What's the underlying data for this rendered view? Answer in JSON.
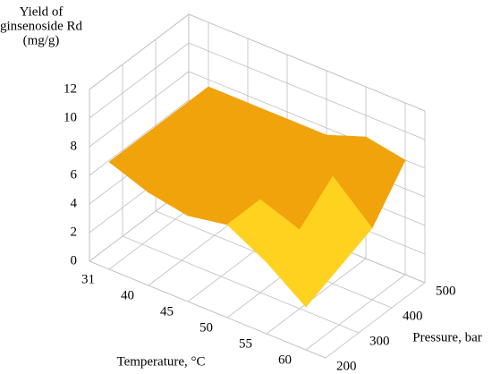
{
  "chart_data": {
    "type": "surface",
    "z_label": [
      "Yield of",
      "ginsenoside Rd",
      "(mg/g)"
    ],
    "x_label": "Temperature, °C",
    "y_label": "Pressure, bar",
    "categories": [
      "31",
      "40",
      "45",
      "50",
      "55",
      "60"
    ],
    "series": [
      {
        "name": "200",
        "values": [
          7.5,
          6.5,
          6,
          6.5,
          5,
          3
        ]
      },
      {
        "name": "300",
        "values": [
          7.5,
          7,
          6.5,
          6.5,
          5.5,
          4
        ]
      },
      {
        "name": "400",
        "values": [
          7.5,
          7.5,
          7,
          7,
          7.5,
          5
        ]
      },
      {
        "name": "500",
        "values": [
          7.5,
          7.5,
          7.5,
          7.5,
          8.5,
          8
        ]
      }
    ],
    "zlim": [
      0,
      12
    ],
    "zticks": [
      0,
      2,
      4,
      6,
      8,
      10,
      12
    ],
    "band_colors": [
      "#7f7f7f",
      "#a5a5a5",
      "#ffd21f",
      "#f0a30a",
      "#3e7fc1",
      "#70ad47"
    ],
    "grid": true
  }
}
